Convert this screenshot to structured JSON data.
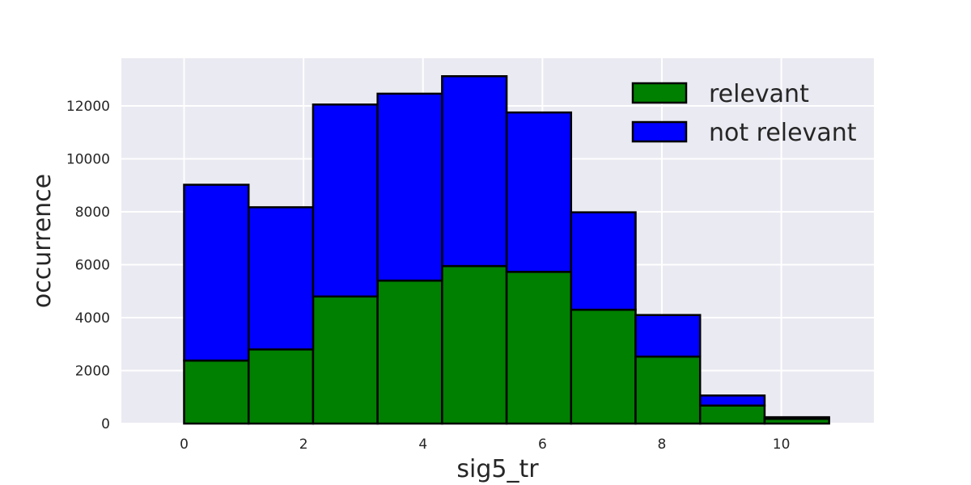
{
  "chart_data": {
    "type": "bar",
    "stacked": true,
    "title": "",
    "xlabel": "sig5_tr",
    "ylabel": "occurrence",
    "xlim": [
      -1.05,
      11.55
    ],
    "ylim": [
      0,
      13800
    ],
    "xticks": [
      0,
      2,
      4,
      6,
      8,
      10
    ],
    "yticks": [
      0,
      2000,
      4000,
      6000,
      8000,
      10000,
      12000
    ],
    "bin_edges": [
      0.0,
      1.08,
      2.16,
      3.24,
      4.32,
      5.4,
      6.48,
      7.56,
      8.64,
      9.72,
      10.8
    ],
    "series": [
      {
        "name": "relevant",
        "color": "#008000",
        "values": [
          2380,
          2800,
          4800,
          5400,
          5950,
          5730,
          4300,
          2530,
          680,
          180
        ]
      },
      {
        "name": "not relevant",
        "color": "#0000ff",
        "values": [
          6640,
          5370,
          7250,
          7060,
          7170,
          6020,
          3680,
          1570,
          380,
          60
        ]
      }
    ],
    "grid": true,
    "background": "#eaeaf2",
    "edge_color": "#000000",
    "legend_position": "top-right"
  }
}
